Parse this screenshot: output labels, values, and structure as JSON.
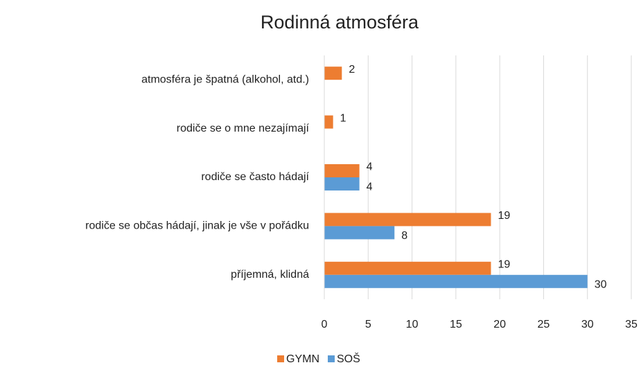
{
  "chart_data": {
    "type": "hbar",
    "title": "Rodinná atmosféra",
    "categories": [
      "atmosféra je špatná (alkohol, atd.)",
      "rodiče se o mne nezajímají",
      "rodiče se často hádají",
      "rodiče se občas hádají, jinak je vše v pořádku",
      "příjemná, klidná"
    ],
    "series": [
      {
        "name": "GYMN",
        "color": "#ed7d31",
        "values": [
          2,
          1,
          4,
          19,
          19
        ]
      },
      {
        "name": "SOŠ",
        "color": "#5b9bd5",
        "values": [
          null,
          null,
          4,
          8,
          30
        ]
      }
    ],
    "xlim": [
      0,
      35
    ],
    "xticks": [
      0,
      5,
      10,
      15,
      20,
      25,
      30,
      35
    ],
    "grid": true,
    "legend": "bottom"
  }
}
